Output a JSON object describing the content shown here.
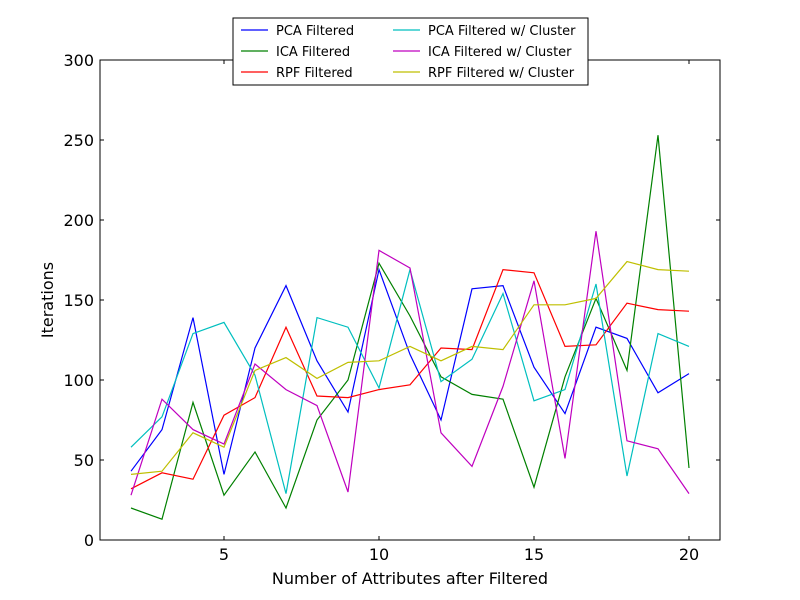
{
  "chart_data": {
    "type": "line",
    "xlabel": "Number of Attributes after Filtered",
    "ylabel": "Iterations",
    "xlim": [
      1,
      21
    ],
    "ylim": [
      0,
      300
    ],
    "xticks": [
      5,
      10,
      15,
      20
    ],
    "yticks": [
      0,
      50,
      100,
      150,
      200,
      250,
      300
    ],
    "grid": false,
    "legend_position": "top-center",
    "legend_columns": 2,
    "x": [
      2,
      3,
      4,
      5,
      6,
      7,
      8,
      9,
      10,
      11,
      12,
      13,
      14,
      15,
      16,
      17,
      18,
      19,
      20
    ],
    "series": [
      {
        "name": "PCA Filtered",
        "color": "#0000ff",
        "values": [
          43,
          69,
          139,
          41,
          120,
          159,
          112,
          80,
          169,
          116,
          75,
          157,
          159,
          108,
          79,
          133,
          126,
          92,
          104
        ]
      },
      {
        "name": "ICA Filtered",
        "color": "#008000",
        "values": [
          20,
          13,
          86,
          28,
          55,
          20,
          75,
          100,
          173,
          140,
          102,
          91,
          88,
          33,
          102,
          151,
          106,
          253,
          45
        ]
      },
      {
        "name": "RPF Filtered",
        "color": "#ff0000",
        "values": [
          32,
          42,
          38,
          78,
          89,
          133,
          90,
          89,
          94,
          97,
          120,
          119,
          169,
          167,
          121,
          122,
          148,
          144,
          143
        ]
      },
      {
        "name": "PCA Filtered w/ Cluster",
        "color": "#00bfbf",
        "values": [
          58,
          77,
          129,
          136,
          103,
          29,
          139,
          133,
          95,
          169,
          99,
          113,
          154,
          87,
          94,
          160,
          40,
          129,
          121
        ]
      },
      {
        "name": "ICA Filtered w/ Cluster",
        "color": "#bf00bf",
        "values": [
          28,
          88,
          69,
          60,
          110,
          94,
          84,
          30,
          181,
          170,
          67,
          46,
          96,
          162,
          51,
          193,
          62,
          57,
          29
        ]
      },
      {
        "name": "RPF Filtered w/ Cluster",
        "color": "#bfbf00",
        "values": [
          41,
          43,
          67,
          58,
          106,
          114,
          101,
          111,
          112,
          121,
          112,
          121,
          119,
          147,
          147,
          151,
          174,
          169,
          168
        ]
      }
    ]
  }
}
